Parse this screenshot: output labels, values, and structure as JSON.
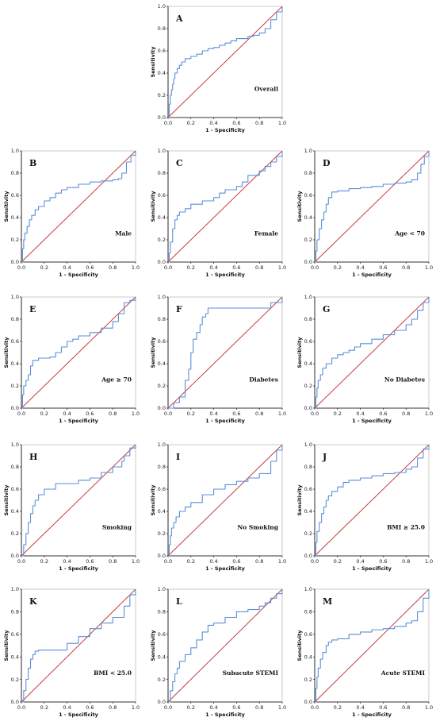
{
  "colors": {
    "roc": "#5b8fd9",
    "reference": "#c83c3c",
    "frame": "#bfbfbf",
    "axis": "#000000"
  },
  "axis": {
    "xlabel": "1 - Specificity",
    "ylabel": "Sensitivity",
    "ticks": [
      "0.0",
      "0.2",
      "0.4",
      "0.6",
      "0.8",
      "1.0"
    ],
    "xlim": [
      0,
      1
    ],
    "ylim": [
      0,
      1
    ]
  },
  "chart_data": [
    {
      "type": "line",
      "panel": "A",
      "label": "Overall",
      "x": [
        0,
        0.01,
        0.02,
        0.03,
        0.04,
        0.05,
        0.06,
        0.08,
        0.1,
        0.12,
        0.15,
        0.2,
        0.25,
        0.3,
        0.35,
        0.4,
        0.45,
        0.5,
        0.55,
        0.6,
        0.7,
        0.75,
        0.8,
        0.85,
        0.9,
        0.95,
        1.0
      ],
      "y": [
        0,
        0.12,
        0.2,
        0.25,
        0.3,
        0.35,
        0.4,
        0.44,
        0.47,
        0.5,
        0.53,
        0.55,
        0.57,
        0.6,
        0.62,
        0.63,
        0.65,
        0.67,
        0.69,
        0.71,
        0.73,
        0.74,
        0.76,
        0.8,
        0.88,
        0.95,
        1.0
      ]
    },
    {
      "type": "line",
      "panel": "B",
      "label": "Male",
      "x": [
        0,
        0.01,
        0.02,
        0.03,
        0.05,
        0.07,
        0.09,
        0.12,
        0.15,
        0.2,
        0.25,
        0.3,
        0.35,
        0.4,
        0.5,
        0.6,
        0.7,
        0.8,
        0.85,
        0.88,
        0.92,
        0.96,
        1.0
      ],
      "y": [
        0,
        0.12,
        0.2,
        0.26,
        0.32,
        0.38,
        0.42,
        0.47,
        0.5,
        0.55,
        0.58,
        0.62,
        0.65,
        0.67,
        0.7,
        0.72,
        0.73,
        0.74,
        0.75,
        0.8,
        0.9,
        0.96,
        1.0
      ]
    },
    {
      "type": "line",
      "panel": "C",
      "label": "Female",
      "x": [
        0,
        0.01,
        0.02,
        0.04,
        0.06,
        0.08,
        0.1,
        0.15,
        0.2,
        0.3,
        0.4,
        0.45,
        0.5,
        0.6,
        0.65,
        0.7,
        0.8,
        0.85,
        0.9,
        0.95,
        1.0
      ],
      "y": [
        0,
        0.08,
        0.18,
        0.3,
        0.38,
        0.42,
        0.45,
        0.48,
        0.52,
        0.55,
        0.58,
        0.62,
        0.65,
        0.68,
        0.72,
        0.78,
        0.82,
        0.86,
        0.9,
        0.95,
        1.0
      ]
    },
    {
      "type": "line",
      "panel": "D",
      "label": "Age < 70",
      "x": [
        0,
        0.01,
        0.02,
        0.04,
        0.06,
        0.08,
        0.1,
        0.12,
        0.15,
        0.2,
        0.3,
        0.4,
        0.5,
        0.6,
        0.7,
        0.8,
        0.85,
        0.9,
        0.93,
        0.96,
        1.0
      ],
      "y": [
        0,
        0.1,
        0.2,
        0.3,
        0.38,
        0.45,
        0.52,
        0.58,
        0.63,
        0.64,
        0.66,
        0.67,
        0.68,
        0.7,
        0.71,
        0.72,
        0.74,
        0.8,
        0.88,
        0.95,
        1.0
      ]
    },
    {
      "type": "line",
      "panel": "E",
      "label": "Age ≥ 70",
      "x": [
        0,
        0.01,
        0.02,
        0.04,
        0.06,
        0.08,
        0.1,
        0.15,
        0.2,
        0.25,
        0.3,
        0.35,
        0.4,
        0.45,
        0.5,
        0.6,
        0.7,
        0.8,
        0.85,
        0.9,
        0.95,
        1.0
      ],
      "y": [
        0,
        0.12,
        0.2,
        0.25,
        0.3,
        0.38,
        0.43,
        0.45,
        0.45,
        0.46,
        0.5,
        0.55,
        0.6,
        0.62,
        0.65,
        0.68,
        0.72,
        0.78,
        0.85,
        0.95,
        0.97,
        1.0
      ]
    },
    {
      "type": "line",
      "panel": "F",
      "label": "Diabetes",
      "x": [
        0,
        0.05,
        0.1,
        0.15,
        0.18,
        0.2,
        0.22,
        0.25,
        0.28,
        0.3,
        0.33,
        0.35,
        0.4,
        0.5,
        0.6,
        0.7,
        0.8,
        0.9,
        0.95,
        1.0
      ],
      "y": [
        0,
        0.05,
        0.1,
        0.25,
        0.35,
        0.5,
        0.62,
        0.68,
        0.75,
        0.82,
        0.85,
        0.9,
        0.9,
        0.9,
        0.9,
        0.9,
        0.9,
        0.95,
        0.95,
        1.0
      ]
    },
    {
      "type": "line",
      "panel": "G",
      "label": "No Diabetes",
      "x": [
        0,
        0.01,
        0.02,
        0.03,
        0.05,
        0.07,
        0.1,
        0.15,
        0.2,
        0.25,
        0.3,
        0.35,
        0.4,
        0.5,
        0.6,
        0.7,
        0.8,
        0.85,
        0.9,
        0.95,
        1.0
      ],
      "y": [
        0,
        0.1,
        0.18,
        0.25,
        0.3,
        0.36,
        0.4,
        0.45,
        0.48,
        0.5,
        0.52,
        0.55,
        0.58,
        0.62,
        0.66,
        0.7,
        0.75,
        0.8,
        0.88,
        0.95,
        1.0
      ]
    },
    {
      "type": "line",
      "panel": "H",
      "label": "Smoking",
      "x": [
        0,
        0.02,
        0.04,
        0.06,
        0.08,
        0.1,
        0.12,
        0.15,
        0.2,
        0.3,
        0.4,
        0.5,
        0.6,
        0.7,
        0.8,
        0.85,
        0.88,
        0.9,
        0.95,
        1.0
      ],
      "y": [
        0,
        0.1,
        0.2,
        0.3,
        0.38,
        0.45,
        0.5,
        0.55,
        0.6,
        0.65,
        0.65,
        0.68,
        0.7,
        0.75,
        0.8,
        0.8,
        0.85,
        0.9,
        0.97,
        1.0
      ]
    },
    {
      "type": "line",
      "panel": "I",
      "label": "No Smoking",
      "x": [
        0,
        0.01,
        0.02,
        0.03,
        0.05,
        0.07,
        0.1,
        0.15,
        0.2,
        0.3,
        0.4,
        0.5,
        0.6,
        0.7,
        0.8,
        0.9,
        0.95,
        1.0
      ],
      "y": [
        0,
        0.1,
        0.18,
        0.25,
        0.3,
        0.35,
        0.4,
        0.44,
        0.48,
        0.55,
        0.6,
        0.64,
        0.67,
        0.7,
        0.74,
        0.85,
        0.95,
        1.0
      ]
    },
    {
      "type": "line",
      "panel": "J",
      "label": "BMI ≥ 25.0",
      "x": [
        0,
        0.01,
        0.02,
        0.04,
        0.06,
        0.08,
        0.1,
        0.12,
        0.15,
        0.2,
        0.25,
        0.3,
        0.4,
        0.5,
        0.6,
        0.7,
        0.8,
        0.85,
        0.9,
        0.95,
        1.0
      ],
      "y": [
        0,
        0.12,
        0.22,
        0.3,
        0.38,
        0.44,
        0.5,
        0.54,
        0.58,
        0.62,
        0.66,
        0.68,
        0.7,
        0.72,
        0.74,
        0.75,
        0.78,
        0.8,
        0.88,
        0.96,
        1.0
      ]
    },
    {
      "type": "line",
      "panel": "K",
      "label": "BMI < 25.0",
      "x": [
        0,
        0.02,
        0.04,
        0.06,
        0.08,
        0.1,
        0.12,
        0.15,
        0.2,
        0.3,
        0.4,
        0.5,
        0.6,
        0.7,
        0.8,
        0.9,
        0.95,
        1.0
      ],
      "y": [
        0,
        0.1,
        0.2,
        0.3,
        0.38,
        0.42,
        0.45,
        0.46,
        0.46,
        0.46,
        0.52,
        0.58,
        0.65,
        0.7,
        0.75,
        0.85,
        0.95,
        1.0
      ]
    },
    {
      "type": "line",
      "panel": "L",
      "label": "Subacute STEMI",
      "x": [
        0,
        0.02,
        0.04,
        0.06,
        0.08,
        0.1,
        0.15,
        0.2,
        0.25,
        0.3,
        0.35,
        0.4,
        0.5,
        0.6,
        0.7,
        0.8,
        0.85,
        0.9,
        0.95,
        1.0
      ],
      "y": [
        0,
        0.1,
        0.18,
        0.25,
        0.3,
        0.36,
        0.42,
        0.48,
        0.55,
        0.62,
        0.68,
        0.7,
        0.75,
        0.8,
        0.82,
        0.85,
        0.88,
        0.92,
        0.96,
        1.0
      ]
    },
    {
      "type": "line",
      "panel": "M",
      "label": "Acute STEMI",
      "x": [
        0,
        0.01,
        0.02,
        0.03,
        0.05,
        0.07,
        0.1,
        0.12,
        0.15,
        0.2,
        0.3,
        0.4,
        0.5,
        0.6,
        0.7,
        0.8,
        0.85,
        0.9,
        0.95,
        1.0
      ],
      "y": [
        0,
        0.12,
        0.22,
        0.3,
        0.38,
        0.44,
        0.5,
        0.53,
        0.55,
        0.56,
        0.6,
        0.62,
        0.64,
        0.65,
        0.67,
        0.7,
        0.72,
        0.8,
        0.92,
        1.0
      ]
    }
  ]
}
